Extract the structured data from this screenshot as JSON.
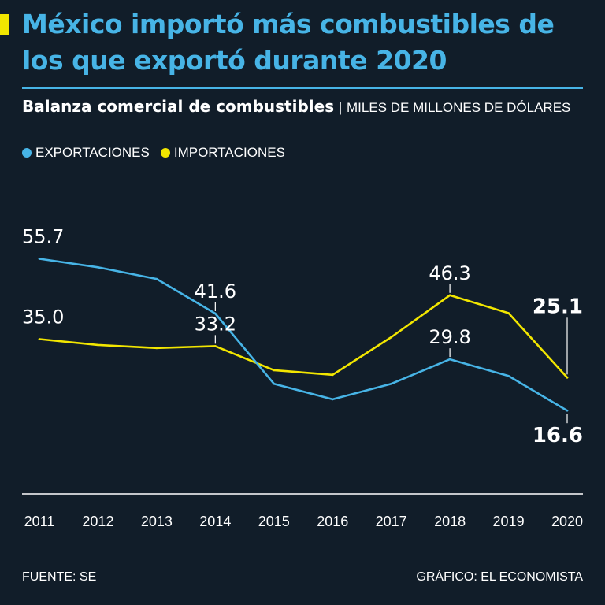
{
  "header": {
    "title": "México importó más combustibles de los que exportó durante 2020",
    "subtitle": "Balanza comercial de combustibles",
    "separator": "|",
    "units": "MILES DE MILLONES DE DÓLARES"
  },
  "colors": {
    "background": "#111d29",
    "accent": "#47b4e6",
    "highlight": "#f2e600",
    "exports": "#47b4e6",
    "imports": "#f2e600"
  },
  "legend": {
    "exports_label": "EXPORTACIONES",
    "imports_label": "IMPORTACIONES"
  },
  "chart_data": {
    "type": "line",
    "x": [
      "2011",
      "2012",
      "2013",
      "2014",
      "2015",
      "2016",
      "2017",
      "2018",
      "2019",
      "2020"
    ],
    "series": [
      {
        "name": "EXPORTACIONES",
        "color": "#47b4e6",
        "values": [
          55.7,
          53.5,
          50.5,
          41.6,
          23.5,
          19.5,
          23.5,
          29.8,
          25.5,
          16.6
        ],
        "labels": [
          {
            "index": 0,
            "text": "55.7",
            "bold": false
          },
          {
            "index": 3,
            "text": "41.6",
            "bold": false
          },
          {
            "index": 7,
            "text": "29.8",
            "bold": false
          },
          {
            "index": 9,
            "text": "16.6",
            "bold": true
          }
        ]
      },
      {
        "name": "IMPORTACIONES",
        "color": "#f2e600",
        "values": [
          35.0,
          33.5,
          32.7,
          33.2,
          27.0,
          25.8,
          35.5,
          46.3,
          41.7,
          25.1
        ],
        "labels": [
          {
            "index": 0,
            "text": "35.0",
            "bold": false
          },
          {
            "index": 3,
            "text": "33.2",
            "bold": false
          },
          {
            "index": 7,
            "text": "46.3",
            "bold": false
          },
          {
            "index": 9,
            "text": "25.1",
            "bold": true
          }
        ]
      }
    ],
    "ylim": [
      0,
      70
    ],
    "grid": false,
    "legend_position": "top-left"
  },
  "footer": {
    "source": "FUENTE: SE",
    "credit": "GRÁFICO: EL ECONOMISTA"
  }
}
